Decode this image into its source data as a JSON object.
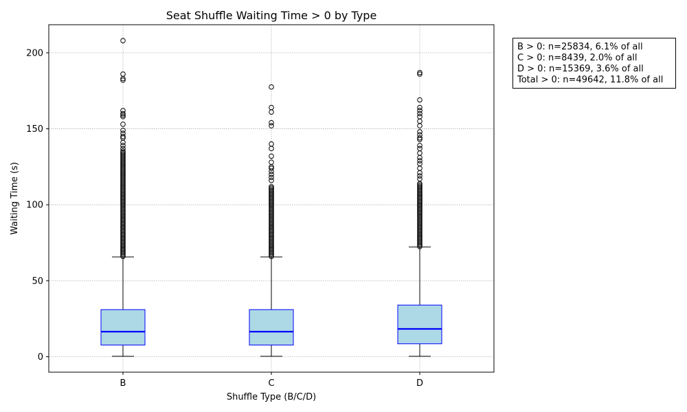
{
  "chart_data": {
    "type": "box",
    "title": "Seat Shuffle Waiting Time > 0 by Type",
    "xlabel": "Shuffle Type (B/C/D)",
    "ylabel": "Waiting Time (s)",
    "ylim": [
      -10,
      219
    ],
    "yticks": [
      0,
      50,
      100,
      150,
      200
    ],
    "grid": true,
    "colors": {
      "box_fill": "#add8e6",
      "box_edge": "#0000ff",
      "median": "#0000ff",
      "whisker": "#000000",
      "flier": "#000000",
      "grid": "#b0b0b0"
    },
    "categories": [
      "B",
      "C",
      "D"
    ],
    "boxes": [
      {
        "category": "B",
        "whisker_low": 0.3,
        "q1": 7.7,
        "median": 16.5,
        "q3": 31,
        "whisker_high": 65.7,
        "outlier_min": 66,
        "dense_outlier_max": 136,
        "outliers": [
          208,
          186,
          183,
          182,
          162,
          160,
          159,
          158,
          153,
          149,
          147,
          145,
          144,
          141,
          139,
          137
        ]
      },
      {
        "category": "C",
        "whisker_low": 0.3,
        "q1": 7.7,
        "median": 16.5,
        "q3": 31,
        "whisker_high": 65.7,
        "outlier_min": 66,
        "dense_outlier_max": 112,
        "outliers": [
          177.5,
          164,
          161,
          154,
          152,
          140,
          137,
          132,
          128,
          125,
          124,
          122,
          120,
          118,
          116
        ]
      },
      {
        "category": "D",
        "whisker_low": 0.3,
        "q1": 8.5,
        "median": 18.3,
        "q3": 34,
        "whisker_high": 72.2,
        "outlier_min": 72.5,
        "dense_outlier_max": 114,
        "outliers": [
          187,
          186,
          169,
          164,
          162,
          160,
          158,
          155,
          152,
          148,
          146,
          144,
          143,
          139,
          137,
          134,
          131,
          129,
          127,
          124,
          121,
          119,
          117
        ]
      }
    ],
    "annotation": [
      "B > 0: n=25834, 6.1% of all",
      "C > 0: n=8439, 2.0% of all",
      "D > 0: n=15369, 3.6% of all",
      "Total > 0: n=49642, 11.8% of all"
    ]
  }
}
